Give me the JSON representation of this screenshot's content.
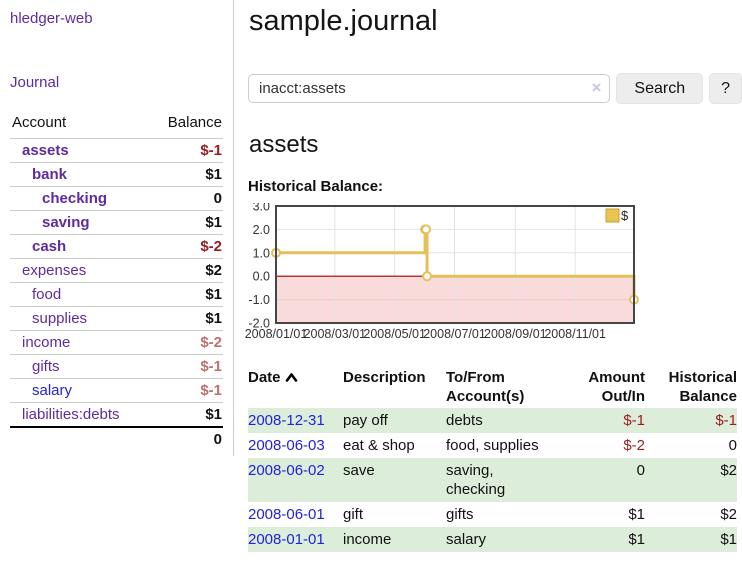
{
  "app": {
    "brand": "hledger-web",
    "nav_journal": "Journal"
  },
  "sidebar": {
    "col_account": "Account",
    "col_balance": "Balance",
    "accounts": [
      {
        "name": "assets",
        "level": 0,
        "active": true,
        "balance": "$-1",
        "neg": true
      },
      {
        "name": "bank",
        "level": 1,
        "active": true,
        "balance": "$1",
        "neg": false
      },
      {
        "name": "checking",
        "level": 2,
        "active": true,
        "balance": "0",
        "neg": false
      },
      {
        "name": "saving",
        "level": 2,
        "active": true,
        "balance": "$1",
        "neg": false
      },
      {
        "name": "cash",
        "level": 1,
        "active": true,
        "balance": "$-2",
        "neg": true
      },
      {
        "name": "expenses",
        "level": 0,
        "active": false,
        "balance": "$2",
        "neg": false
      },
      {
        "name": "food",
        "level": 1,
        "active": false,
        "balance": "$1",
        "neg": false
      },
      {
        "name": "supplies",
        "level": 1,
        "active": false,
        "balance": "$1",
        "neg": false
      },
      {
        "name": "income",
        "level": 0,
        "active": false,
        "balance": "$-2",
        "neg": true
      },
      {
        "name": "gifts",
        "level": 1,
        "active": false,
        "balance": "$-1",
        "neg": true
      },
      {
        "name": "salary",
        "level": 1,
        "active": false,
        "balance": "$-1",
        "neg": true,
        "link_color": "blue"
      },
      {
        "name": "liabilities:debts",
        "level": 0,
        "active": false,
        "balance": "$1",
        "neg": false
      }
    ],
    "total": "0"
  },
  "header": {
    "title": "sample.journal"
  },
  "search": {
    "value": "inacct:assets",
    "clear_icon": "×",
    "button_label": "Search",
    "help_label": "?"
  },
  "account_page": {
    "heading": "assets",
    "chart_label": "Historical Balance:"
  },
  "chart_data": {
    "type": "line",
    "step": true,
    "title": "Historical Balance:",
    "series": [
      {
        "name": "$",
        "points": [
          [
            "2008-01-01",
            1
          ],
          [
            "2008-06-01",
            2
          ],
          [
            "2008-06-02",
            2
          ],
          [
            "2008-06-03",
            0
          ],
          [
            "2008-12-31",
            -1
          ]
        ]
      }
    ],
    "ylim": [
      -2,
      3
    ],
    "yticks": [
      "3.0",
      "2.0",
      "1.0",
      "0.0",
      "-1.0",
      "-2.0"
    ],
    "xticks": [
      "2008/01/01",
      "2008/03/01",
      "2008/05/01",
      "2008/07/01",
      "2008/09/01",
      "2008/11/01"
    ],
    "legend": {
      "label": "$",
      "position": "top-right"
    },
    "colors": {
      "line": "#e4c05a",
      "marker_fill": "#ffffff",
      "legend_fill": "#e9c455",
      "legend_border": "#c9a22c",
      "negative_region": "#fadbdb",
      "zero_line": "#a40000",
      "grid": "#e3e3e3",
      "frame": "#464646",
      "tick_text": "#333333"
    }
  },
  "register": {
    "columns": [
      "Date",
      "Description",
      "To/From Account(s)",
      "Amount Out/In",
      "Historical Balance"
    ],
    "sort": {
      "column": "Date",
      "direction": "ascending"
    },
    "rows": [
      {
        "date": "2008-12-31",
        "description": "pay off",
        "accounts": "debts",
        "amount": "$-1",
        "balance": "$-1"
      },
      {
        "date": "2008-06-03",
        "description": "eat & shop",
        "accounts": "food, supplies",
        "amount": "$-2",
        "balance": "0"
      },
      {
        "date": "2008-06-02",
        "description": "save",
        "accounts": "saving, checking",
        "amount": "0",
        "balance": "$2"
      },
      {
        "date": "2008-06-01",
        "description": "gift",
        "accounts": "gifts",
        "amount": "$1",
        "balance": "$2"
      },
      {
        "date": "2008-01-01",
        "description": "income",
        "accounts": "salary",
        "amount": "$1",
        "balance": "$1"
      }
    ]
  },
  "colors": {
    "link_purple": "#5f2ba0",
    "link_blue": "#2222dd",
    "negative_red": "#9b1c1c",
    "negative_red_soft": "#c0706e",
    "row_green": "#dcedd9"
  }
}
